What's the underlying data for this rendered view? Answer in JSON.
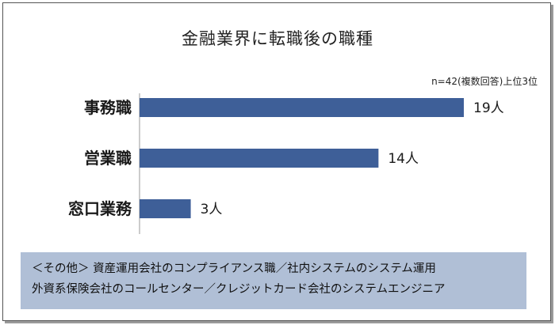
{
  "chart_data": {
    "type": "bar",
    "orientation": "horizontal",
    "title": "金融業界に転職後の職種",
    "note": "n=42(複数回答)上位3位",
    "categories": [
      "事務職",
      "営業職",
      "窓口業務"
    ],
    "values": [
      19,
      14,
      3
    ],
    "value_labels": [
      "19人",
      "14人",
      "3人"
    ],
    "xlim": [
      0,
      19
    ],
    "grid": false,
    "bar_color": "#3e5f98"
  },
  "footer": {
    "line1": "＜その他＞ 資産運用会社のコンプライアンス職／社内システムのシステム運用",
    "line2": "外資系保険会社のコールセンター／クレジットカード会社のシステムエンジニア"
  }
}
